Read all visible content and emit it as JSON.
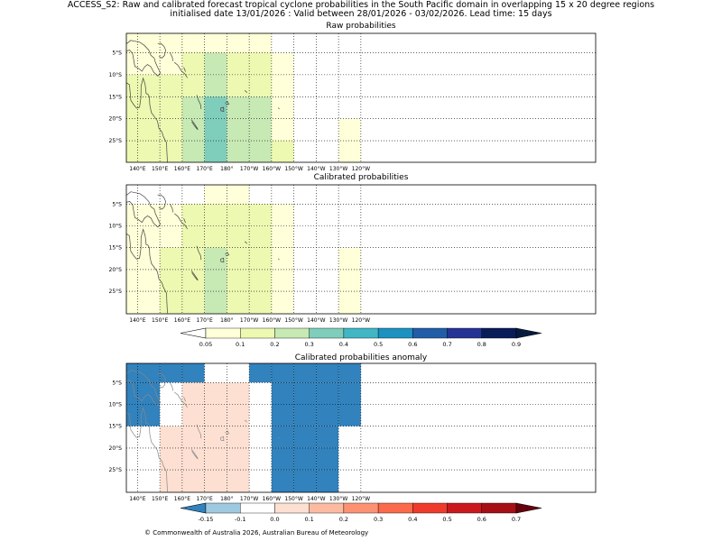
{
  "header": {
    "line1": "ACCESS_S2: Raw and calibrated forecast tropical cyclone probabilities in the South Pacific domain in overlapping 15 x 20 degree regions",
    "line2": "initialised date 13/01/2026 :  Valid between 28/01/2026 - 03/02/2026. Lead time: 15 days"
  },
  "axes": {
    "lon_labels": [
      "140°E",
      "150°E",
      "160°E",
      "170°E",
      "180°",
      "170°W",
      "160°W",
      "150°W",
      "140°W",
      "130°W",
      "120°W"
    ],
    "lat_labels": [
      "5°S",
      "10°S",
      "15°S",
      "20°S",
      "25°S"
    ]
  },
  "panels": [
    {
      "title": "Raw probabilities",
      "kind": "prob",
      "cells": [
        [
          0.05,
          0.05,
          0.05,
          0.05,
          0.05,
          0.05,
          0.05,
          0,
          0,
          0,
          0
        ],
        [
          0.05,
          0.05,
          0.05,
          0.1,
          0.2,
          0.1,
          0.1,
          0.05,
          0,
          0,
          0
        ],
        [
          0.1,
          0.1,
          0.1,
          0.1,
          0.2,
          0.1,
          0.1,
          0.05,
          0,
          0,
          0
        ],
        [
          0.1,
          0.1,
          0.1,
          0.2,
          0.3,
          0.2,
          0.2,
          0.05,
          0,
          0,
          0
        ],
        [
          0.1,
          0.1,
          0.1,
          0.2,
          0.3,
          0.2,
          0.2,
          0.05,
          0,
          0,
          0.05
        ],
        [
          0.1,
          0.1,
          0.1,
          0.2,
          0.3,
          0.2,
          0.2,
          0.1,
          0,
          0,
          0.05
        ]
      ]
    },
    {
      "title": "Calibrated probabilities",
      "kind": "prob",
      "cells": [
        [
          0,
          0,
          0,
          0,
          0.05,
          0.05,
          0,
          0,
          0,
          0,
          0
        ],
        [
          0.05,
          0.05,
          0.05,
          0.1,
          0.1,
          0.1,
          0.1,
          0.05,
          0,
          0,
          0
        ],
        [
          0.05,
          0.05,
          0.05,
          0.1,
          0.1,
          0.1,
          0.1,
          0.05,
          0,
          0,
          0
        ],
        [
          0.05,
          0.05,
          0.1,
          0.1,
          0.2,
          0.1,
          0.1,
          0.05,
          0,
          0,
          0.05
        ],
        [
          0.05,
          0.05,
          0.1,
          0.1,
          0.2,
          0.1,
          0.1,
          0.05,
          0,
          0,
          0.05
        ],
        [
          0.05,
          0.05,
          0.1,
          0.1,
          0.2,
          0.1,
          0.1,
          0.05,
          0,
          0,
          0.05
        ]
      ]
    },
    {
      "title": "Calibrated probabilities anomaly",
      "kind": "anom",
      "cells": [
        [
          -0.2,
          -0.2,
          -0.2,
          -0.2,
          -0.1,
          -0.1,
          -0.2,
          -0.2,
          -0.2,
          -0.2,
          -0.2
        ],
        [
          -0.2,
          -0.2,
          -0.1,
          0,
          0,
          0,
          -0.1,
          -0.2,
          -0.2,
          -0.2,
          -0.2
        ],
        [
          -0.2,
          -0.2,
          -0.1,
          0,
          0,
          0,
          -0.1,
          -0.2,
          -0.2,
          -0.2,
          -0.2
        ],
        [
          -0.1,
          -0.1,
          0,
          0,
          0.05,
          0,
          -0.1,
          -0.2,
          -0.2,
          -0.2,
          -0.1
        ],
        [
          -0.1,
          -0.1,
          0,
          0,
          0.05,
          0,
          -0.1,
          -0.2,
          -0.2,
          -0.2,
          -0.1
        ],
        [
          -0.1,
          -0.1,
          0,
          0,
          0.05,
          0,
          -0.1,
          -0.2,
          -0.2,
          -0.2,
          -0.1
        ]
      ]
    }
  ],
  "colorbars": {
    "prob": {
      "levels": [
        0.05,
        0.1,
        0.2,
        0.3,
        0.4,
        0.5,
        0.6,
        0.7,
        0.8,
        0.9
      ],
      "labels": [
        "0.05",
        "0.1",
        "0.2",
        "0.3",
        "0.4",
        "0.5",
        "0.6",
        "0.7",
        "0.8",
        "0.9"
      ],
      "colors": [
        "#ffffff",
        "#ffffd9",
        "#edf8b1",
        "#c7e9b4",
        "#7fcdbb",
        "#41b6c4",
        "#1d91c0",
        "#225ea8",
        "#253494",
        "#081d58",
        "#061a40"
      ]
    },
    "anom": {
      "levels": [
        -0.15,
        -0.1,
        0.0,
        0.1,
        0.2,
        0.3,
        0.4,
        0.5,
        0.6,
        0.7
      ],
      "labels": [
        "-0.15",
        "-0.1",
        "0.0",
        "0.1",
        "0.2",
        "0.3",
        "0.4",
        "0.5",
        "0.6",
        "0.7"
      ],
      "colors": [
        "#3182bd",
        "#9ecae1",
        "#ffffff",
        "#fee0d2",
        "#fcbba1",
        "#fc9272",
        "#fb6a4a",
        "#ef3b2c",
        "#cb181d",
        "#a50f15",
        "#67000d"
      ]
    }
  },
  "footer": {
    "copyright": "© Commonwealth of Australia 2026, Australian Bureau of Meteorology"
  }
}
